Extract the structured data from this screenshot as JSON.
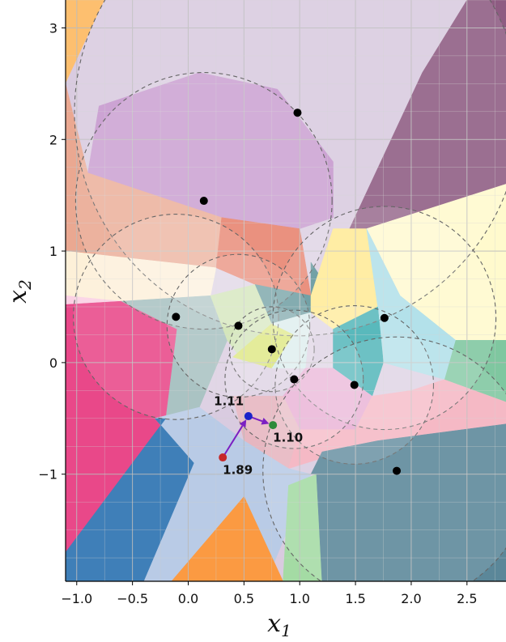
{
  "chart_data": {
    "type": "scatter",
    "title": "",
    "xlabel": "x",
    "xlabel_sub": "1",
    "ylabel": "x",
    "ylabel_sub": "2",
    "xlim": [
      -1.1,
      2.85
    ],
    "ylim": [
      -1.96,
      3.25
    ],
    "grid": true,
    "xticks": [
      -1.0,
      -0.5,
      0.0,
      0.5,
      1.0,
      1.5,
      2.0,
      2.5
    ],
    "xtick_labels": [
      "−1.0",
      "−0.5",
      "0.0",
      "0.5",
      "1.0",
      "1.5",
      "2.0",
      "2.5"
    ],
    "yticks": [
      -1,
      0,
      1,
      2,
      3
    ],
    "ytick_labels": [
      "−1",
      "0",
      "1",
      "2",
      "3"
    ],
    "cells": [
      {
        "color": "#fdbf6f",
        "points": [
          [
            -1.1,
            3.25
          ],
          [
            -0.75,
            3.25
          ],
          [
            -1.1,
            2.5
          ]
        ]
      },
      {
        "color": "#d9cbe0",
        "points": [
          [
            -0.75,
            3.25
          ],
          [
            2.5,
            3.25
          ],
          [
            2.1,
            2.6
          ],
          [
            1.4,
            1.1
          ],
          [
            0.9,
            1.2
          ],
          [
            0.3,
            2.0
          ],
          [
            -0.5,
            2.2
          ],
          [
            -1.1,
            2.5
          ]
        ]
      },
      {
        "color": "#8e5c82",
        "points": [
          [
            2.5,
            3.25
          ],
          [
            2.85,
            3.25
          ],
          [
            2.85,
            1.6
          ],
          [
            1.4,
            1.1
          ],
          [
            2.1,
            2.6
          ]
        ]
      },
      {
        "color": "#c597cd",
        "points": [
          [
            -0.8,
            2.3
          ],
          [
            0.1,
            2.6
          ],
          [
            0.8,
            2.45
          ],
          [
            1.3,
            1.8
          ],
          [
            1.3,
            1.3
          ],
          [
            1.0,
            1.2
          ],
          [
            0.3,
            1.3
          ],
          [
            -0.9,
            1.7
          ]
        ]
      },
      {
        "color": "#eaa891",
        "points": [
          [
            -1.1,
            2.5
          ],
          [
            -0.9,
            1.7
          ],
          [
            0.3,
            1.3
          ],
          [
            0.25,
            0.85
          ],
          [
            -1.1,
            1.0
          ]
        ]
      },
      {
        "color": "#e5715a",
        "points": [
          [
            0.25,
            0.85
          ],
          [
            0.3,
            1.3
          ],
          [
            1.0,
            1.2
          ],
          [
            1.1,
            0.6
          ],
          [
            0.6,
            0.7
          ]
        ]
      },
      {
        "color": "#fdf0d8",
        "points": [
          [
            -1.1,
            1.0
          ],
          [
            0.25,
            0.85
          ],
          [
            0.2,
            0.6
          ],
          [
            -0.6,
            0.55
          ],
          [
            -1.1,
            0.6
          ]
        ]
      },
      {
        "color": "#fbd1e4",
        "points": [
          [
            -1.1,
            0.6
          ],
          [
            -0.6,
            0.55
          ],
          [
            -1.1,
            0.52
          ]
        ]
      },
      {
        "color": "#e94889",
        "points": [
          [
            -1.1,
            0.52
          ],
          [
            -0.6,
            0.55
          ],
          [
            -0.1,
            0.3
          ],
          [
            -0.2,
            -0.5
          ],
          [
            -1.1,
            -1.7
          ]
        ]
      },
      {
        "color": "#9fbbbb",
        "points": [
          [
            -0.6,
            0.55
          ],
          [
            0.2,
            0.6
          ],
          [
            0.35,
            0.2
          ],
          [
            0.1,
            -0.4
          ],
          [
            -0.2,
            -0.5
          ],
          [
            -0.1,
            0.3
          ]
        ]
      },
      {
        "color": "#c8e0a8",
        "points": [
          [
            0.2,
            0.6
          ],
          [
            0.6,
            0.7
          ],
          [
            0.75,
            0.35
          ],
          [
            0.5,
            0.0
          ],
          [
            0.35,
            0.2
          ]
        ]
      },
      {
        "color": "#4a878c",
        "points": [
          [
            0.6,
            0.7
          ],
          [
            1.1,
            0.6
          ],
          [
            1.1,
            0.9
          ],
          [
            1.3,
            0.6
          ],
          [
            1.1,
            0.45
          ],
          [
            0.75,
            0.35
          ]
        ]
      },
      {
        "color": "#ffe98a",
        "points": [
          [
            1.1,
            0.6
          ],
          [
            1.3,
            1.2
          ],
          [
            1.6,
            1.2
          ],
          [
            1.7,
            0.5
          ],
          [
            1.3,
            0.3
          ],
          [
            1.1,
            0.45
          ]
        ]
      },
      {
        "color": "#fffacd",
        "points": [
          [
            1.6,
            1.2
          ],
          [
            2.85,
            1.6
          ],
          [
            2.85,
            0.2
          ],
          [
            2.4,
            0.2
          ],
          [
            1.9,
            0.6
          ]
        ]
      },
      {
        "color": "#a9dde7",
        "points": [
          [
            1.6,
            1.2
          ],
          [
            1.9,
            0.6
          ],
          [
            2.4,
            0.2
          ],
          [
            2.3,
            -0.15
          ],
          [
            1.75,
            0.0
          ],
          [
            1.7,
            0.5
          ]
        ]
      },
      {
        "color": "#d4e157",
        "points": [
          [
            0.4,
            0.05
          ],
          [
            0.75,
            0.35
          ],
          [
            0.95,
            0.25
          ],
          [
            0.75,
            -0.05
          ]
        ]
      },
      {
        "color": "#cfe8e8",
        "points": [
          [
            0.75,
            0.35
          ],
          [
            1.1,
            0.45
          ],
          [
            1.05,
            -0.05
          ],
          [
            0.75,
            -0.05
          ],
          [
            0.95,
            0.25
          ]
        ]
      },
      {
        "color": "#2aa5a9",
        "points": [
          [
            1.3,
            0.3
          ],
          [
            1.7,
            0.5
          ],
          [
            1.75,
            0.0
          ],
          [
            1.65,
            -0.3
          ],
          [
            1.3,
            -0.05
          ]
        ]
      },
      {
        "color": "#e6a4cf",
        "points": [
          [
            1.05,
            -0.05
          ],
          [
            1.3,
            -0.05
          ],
          [
            1.65,
            -0.3
          ],
          [
            1.5,
            -0.6
          ],
          [
            1.0,
            -0.6
          ],
          [
            0.85,
            -0.3
          ]
        ]
      },
      {
        "color": "#e6b6c0",
        "points": [
          [
            0.4,
            -0.3
          ],
          [
            0.85,
            -0.3
          ],
          [
            1.0,
            -0.6
          ],
          [
            0.9,
            -0.95
          ],
          [
            0.5,
            -0.7
          ]
        ]
      },
      {
        "color": "#f4b0be",
        "points": [
          [
            1.0,
            -0.6
          ],
          [
            1.5,
            -0.6
          ],
          [
            1.65,
            -0.3
          ],
          [
            2.0,
            -0.25
          ],
          [
            2.3,
            -0.15
          ],
          [
            2.85,
            -0.35
          ],
          [
            2.85,
            -0.55
          ],
          [
            1.7,
            -0.7
          ],
          [
            0.9,
            -0.95
          ]
        ]
      },
      {
        "color": "#b9cbe6",
        "points": [
          [
            -0.3,
            -0.5
          ],
          [
            0.1,
            -0.4
          ],
          [
            0.5,
            -0.7
          ],
          [
            0.9,
            -0.95
          ],
          [
            1.1,
            -1.0
          ],
          [
            0.7,
            -1.96
          ],
          [
            -0.4,
            -1.96
          ],
          [
            0.05,
            -0.9
          ]
        ]
      },
      {
        "color": "#3f7fb8",
        "points": [
          [
            -1.1,
            -1.7
          ],
          [
            -0.2,
            -0.5
          ],
          [
            -0.3,
            -0.5
          ],
          [
            0.05,
            -0.9
          ],
          [
            -0.4,
            -1.96
          ],
          [
            -1.1,
            -1.96
          ]
        ]
      },
      {
        "color": "#fb9a42",
        "points": [
          [
            -0.15,
            -1.96
          ],
          [
            0.5,
            -1.2
          ],
          [
            0.85,
            -1.96
          ]
        ]
      },
      {
        "color": "#a4dba4",
        "points": [
          [
            0.85,
            -1.96
          ],
          [
            0.9,
            -1.1
          ],
          [
            1.15,
            -1.0
          ],
          [
            1.2,
            -1.96
          ]
        ]
      },
      {
        "color": "#5b8799",
        "points": [
          [
            1.1,
            -1.0
          ],
          [
            1.2,
            -0.8
          ],
          [
            1.7,
            -0.7
          ],
          [
            2.85,
            -0.55
          ],
          [
            2.85,
            -1.96
          ],
          [
            1.2,
            -1.96
          ],
          [
            1.15,
            -1.0
          ]
        ]
      },
      {
        "color": "#7fc7a0",
        "points": [
          [
            2.4,
            0.2
          ],
          [
            2.85,
            0.2
          ],
          [
            2.85,
            -0.35
          ],
          [
            2.3,
            -0.15
          ]
        ]
      }
    ],
    "circles": [
      {
        "cx": 0.98,
        "cy": 2.24,
        "r": 2.0
      },
      {
        "cx": 0.14,
        "cy": 1.45,
        "r": 1.15
      },
      {
        "cx": -0.11,
        "cy": 0.41,
        "r": 0.92
      },
      {
        "cx": 0.45,
        "cy": 0.33,
        "r": 0.64
      },
      {
        "cx": 0.75,
        "cy": 0.12,
        "r": 0.38
      },
      {
        "cx": 1.76,
        "cy": 0.4,
        "r": 1.0
      },
      {
        "cx": 1.49,
        "cy": -0.2,
        "r": 0.71
      },
      {
        "cx": 0.95,
        "cy": -0.15,
        "r": 0.62
      },
      {
        "cx": 1.87,
        "cy": -0.97,
        "r": 1.2
      }
    ],
    "points": [
      {
        "x": 0.98,
        "y": 2.24,
        "color": "#000000"
      },
      {
        "x": 0.14,
        "y": 1.45,
        "color": "#000000"
      },
      {
        "x": -0.11,
        "y": 0.41,
        "color": "#000000"
      },
      {
        "x": 0.45,
        "y": 0.33,
        "color": "#000000"
      },
      {
        "x": 0.75,
        "y": 0.12,
        "color": "#000000"
      },
      {
        "x": 1.76,
        "y": 0.4,
        "color": "#000000"
      },
      {
        "x": 1.49,
        "y": -0.2,
        "color": "#000000"
      },
      {
        "x": 0.95,
        "y": -0.15,
        "color": "#000000"
      },
      {
        "x": 1.87,
        "y": -0.97,
        "color": "#000000"
      }
    ],
    "special_points": [
      {
        "name": "red",
        "x": 0.31,
        "y": -0.85,
        "color": "#c62828"
      },
      {
        "name": "blue",
        "x": 0.54,
        "y": -0.48,
        "color": "#1a23c9"
      },
      {
        "name": "green",
        "x": 0.76,
        "y": -0.56,
        "color": "#2e8b3a"
      }
    ],
    "arrows": [
      {
        "from": [
          0.31,
          -0.85
        ],
        "to": [
          0.54,
          -0.48
        ],
        "color": "#7b1fc2"
      },
      {
        "from": [
          0.54,
          -0.48
        ],
        "to": [
          0.76,
          -0.56
        ],
        "color": "#7b1fc2"
      }
    ],
    "annotations": [
      {
        "text": "1.11",
        "x": 0.23,
        "y": -0.38
      },
      {
        "text": "1.10",
        "x": 0.76,
        "y": -0.71
      },
      {
        "text": "1.89",
        "x": 0.31,
        "y": -1.0
      }
    ]
  }
}
